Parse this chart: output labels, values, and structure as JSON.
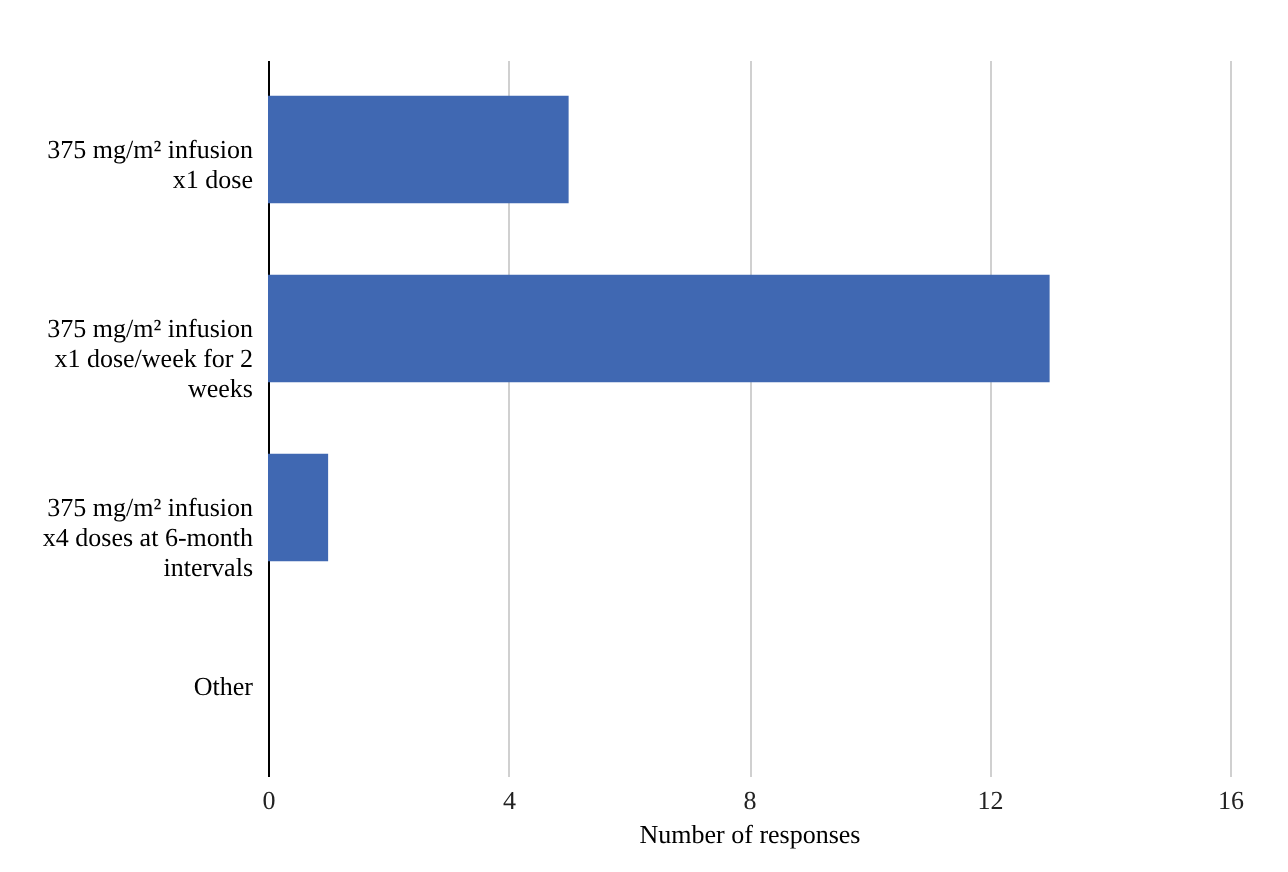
{
  "chart_data": {
    "type": "bar",
    "orientation": "horizontal",
    "xlabel": "Number of responses",
    "categories": [
      "375 mg/m² infusion x1 dose",
      "375 mg/m² infusion x1 dose/week for 2 weeks",
      "375 mg/m² infusion x4 doses at 6-month intervals",
      "Other"
    ],
    "values": [
      5,
      13,
      1,
      0
    ],
    "color": "#4068b2",
    "xlim": [
      0,
      16
    ],
    "xticks": [
      0,
      4,
      8,
      12,
      16
    ],
    "grid": "x"
  }
}
